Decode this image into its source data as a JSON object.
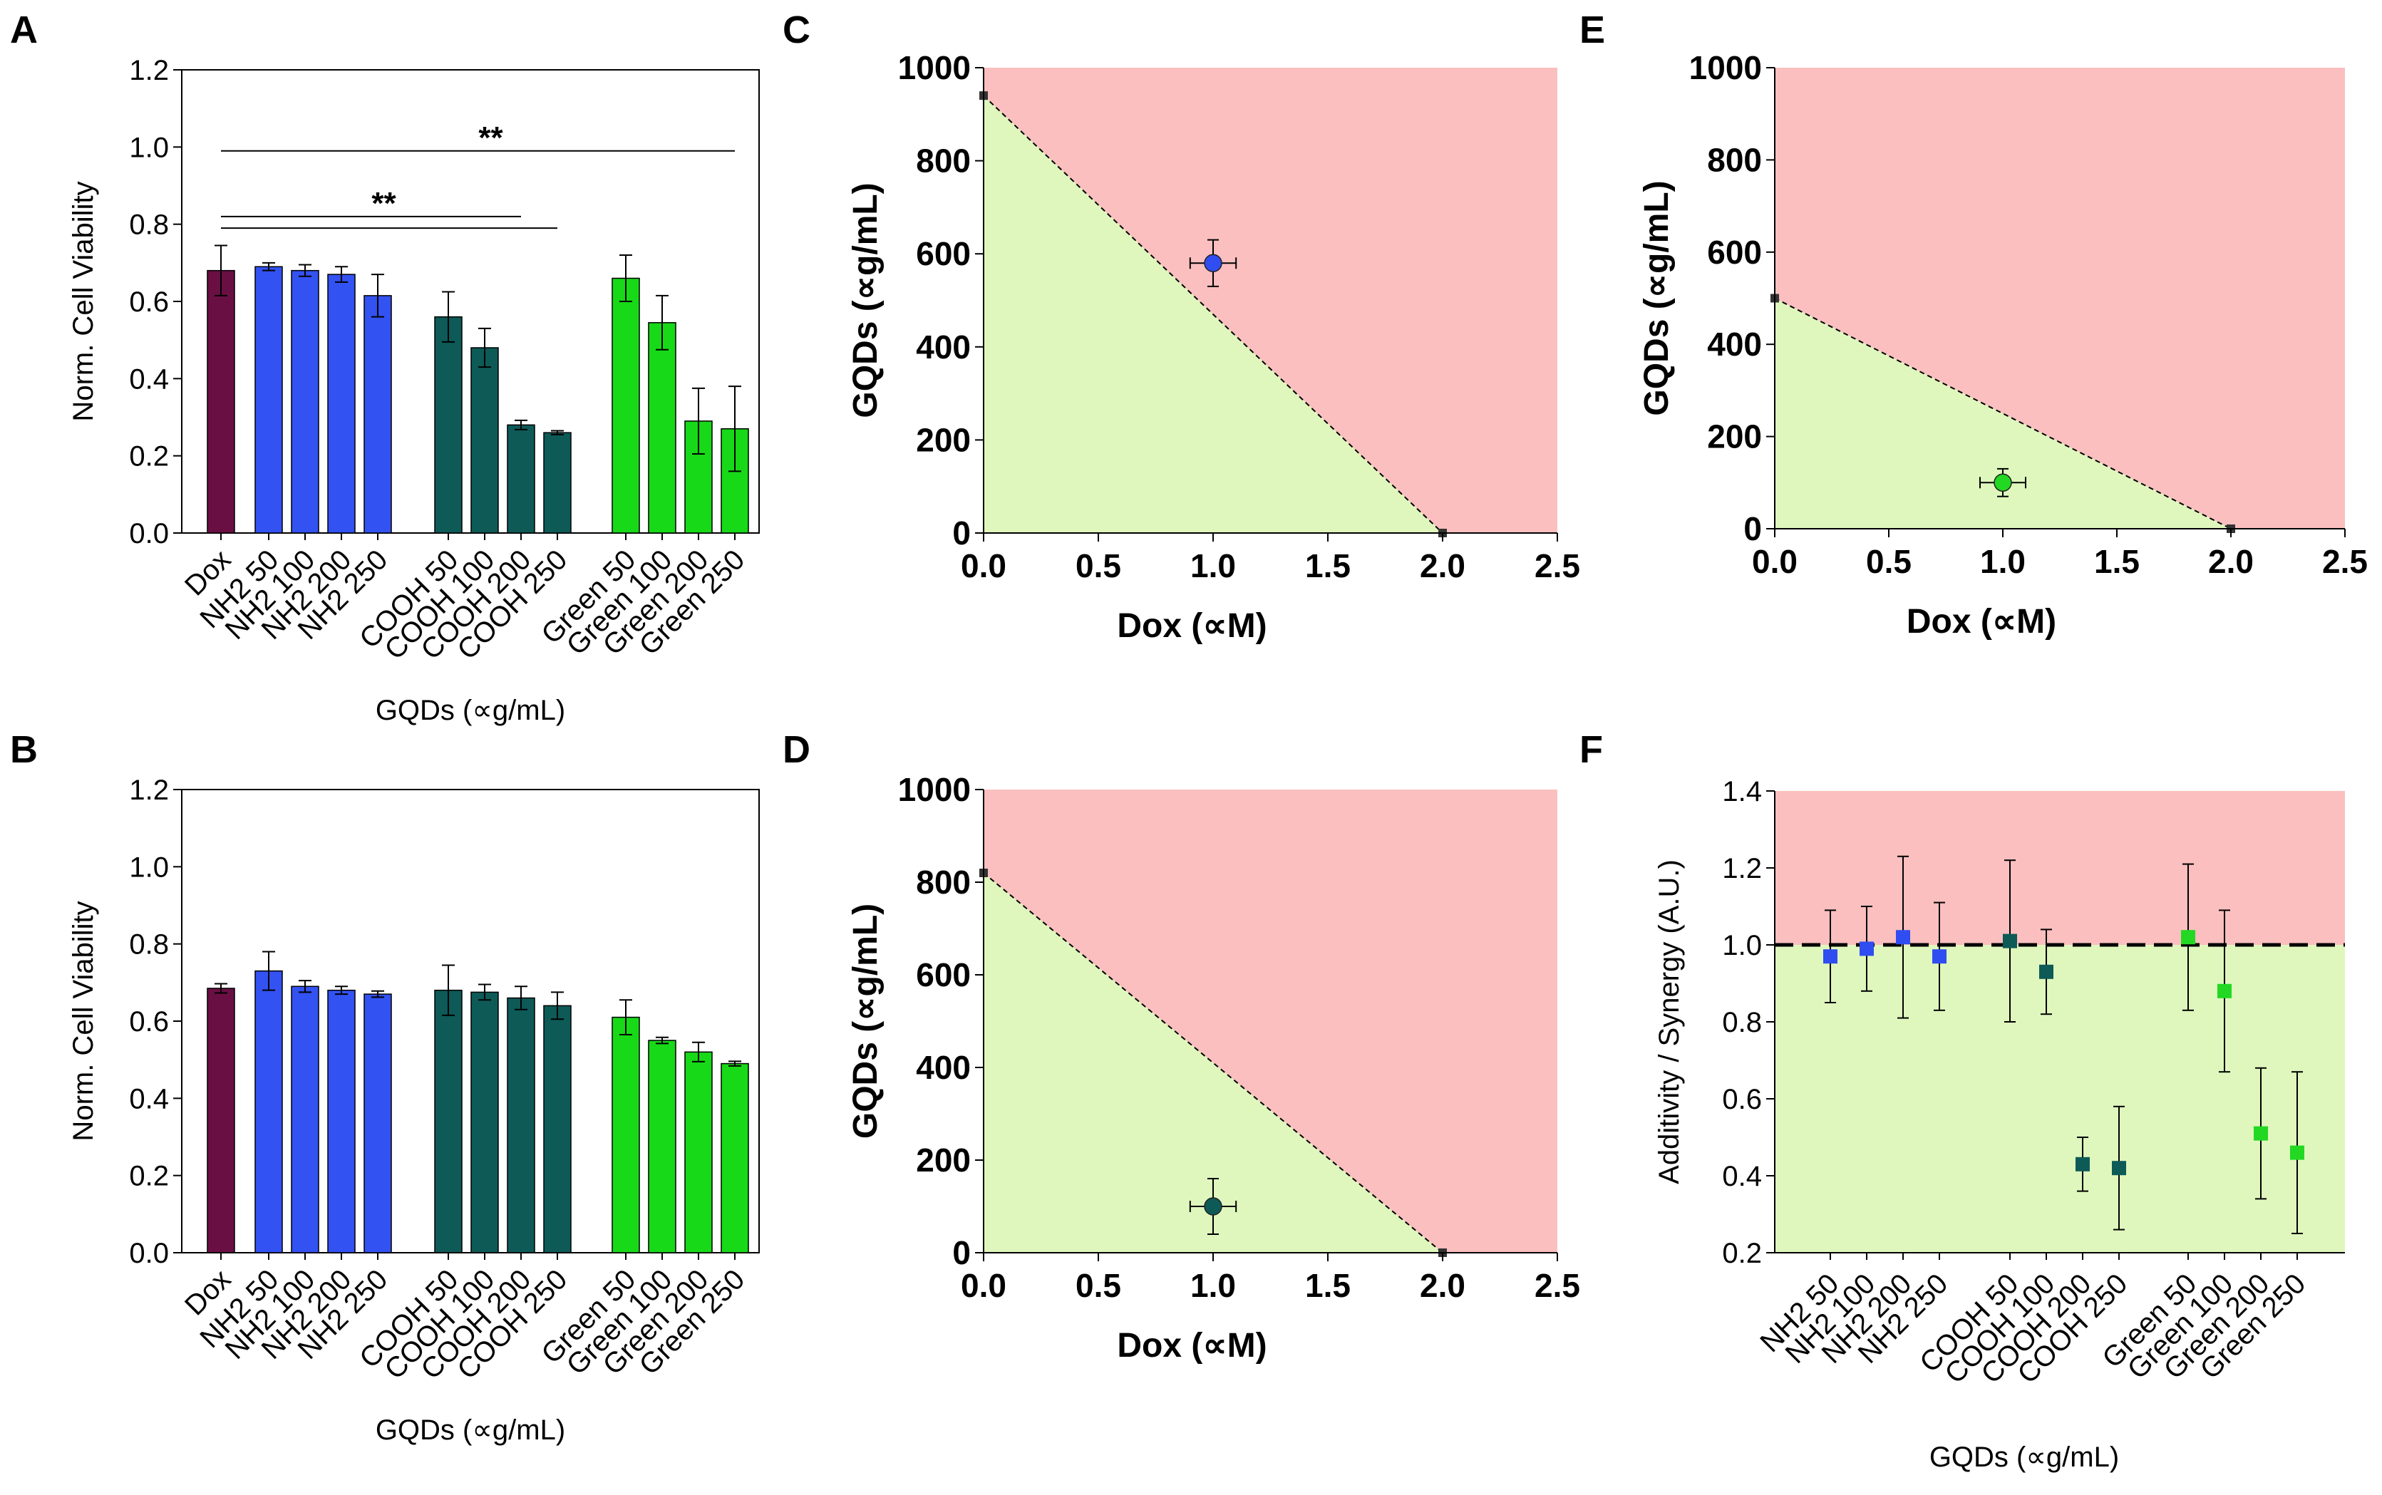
{
  "chart_data": [
    {
      "panel": "A",
      "type": "bar",
      "ylabel": "Norm. Cell Viability",
      "xlabel": "GQDs (∝g/mL)",
      "ylim": [
        0,
        1.2
      ],
      "yticks": [
        "0.0",
        "0.2",
        "0.4",
        "0.6",
        "0.8",
        "1.0",
        "1.2"
      ],
      "categories": [
        "Dox",
        "NH2 50",
        "NH2 100",
        "NH2 200",
        "NH2 250",
        "COOH 50",
        "COOH 100",
        "COOH 200",
        "COOH 250",
        "Green 50",
        "Green 100",
        "Green 200",
        "Green 250"
      ],
      "values": [
        0.68,
        0.69,
        0.68,
        0.67,
        0.615,
        0.56,
        0.48,
        0.28,
        0.26,
        0.66,
        0.545,
        0.29,
        0.27
      ],
      "errors": [
        0.065,
        0.01,
        0.015,
        0.02,
        0.055,
        0.065,
        0.05,
        0.012,
        0.005,
        0.06,
        0.07,
        0.085,
        0.11
      ],
      "colors": [
        "#6a0f44",
        "#3352f2",
        "#3352f2",
        "#3352f2",
        "#3352f2",
        "#0d5a57",
        "#0d5a57",
        "#0d5a57",
        "#0d5a57",
        "#18d918",
        "#18d918",
        "#18d918",
        "#18d918"
      ],
      "significance": [
        {
          "label": "**",
          "from": 0,
          "to": 12,
          "y": 0.99
        },
        {
          "label": "**",
          "from": 0,
          "to": 7,
          "y": 0.82
        },
        {
          "label": "",
          "from": 0,
          "to": 8,
          "y": 0.79
        }
      ]
    },
    {
      "panel": "B",
      "type": "bar",
      "ylabel": "Norm. Cell Viability",
      "xlabel": "GQDs (∝g/mL)",
      "ylim": [
        0,
        1.2
      ],
      "yticks": [
        "0.0",
        "0.2",
        "0.4",
        "0.6",
        "0.8",
        "1.0",
        "1.2"
      ],
      "categories": [
        "Dox",
        "NH2 50",
        "NH2 100",
        "NH2 200",
        "NH2 250",
        "COOH 50",
        "COOH 100",
        "COOH 200",
        "COOH 250",
        "Green 50",
        "Green 100",
        "Green 200",
        "Green 250"
      ],
      "values": [
        0.685,
        0.73,
        0.69,
        0.68,
        0.67,
        0.68,
        0.675,
        0.66,
        0.64,
        0.61,
        0.55,
        0.52,
        0.49
      ],
      "errors": [
        0.012,
        0.05,
        0.015,
        0.01,
        0.008,
        0.065,
        0.02,
        0.03,
        0.035,
        0.045,
        0.008,
        0.025,
        0.006
      ],
      "colors": [
        "#6a0f44",
        "#3352f2",
        "#3352f2",
        "#3352f2",
        "#3352f2",
        "#0d5a57",
        "#0d5a57",
        "#0d5a57",
        "#0d5a57",
        "#18d918",
        "#18d918",
        "#18d918",
        "#18d918"
      ],
      "significance": []
    },
    {
      "panel": "C",
      "type": "isobologram",
      "xlabel": "Dox (∝M)",
      "ylabel": "GQDs (∝g/mL)",
      "xlim": [
        0,
        2.5
      ],
      "ylim": [
        0,
        1000
      ],
      "xticks": [
        "0.0",
        "0.5",
        "1.0",
        "1.5",
        "2.0",
        "2.5"
      ],
      "yticks": [
        "0",
        "200",
        "400",
        "600",
        "800",
        "1000"
      ],
      "additivity_line": [
        [
          0,
          940
        ],
        [
          2.0,
          0
        ]
      ],
      "point": {
        "x": 1.0,
        "y": 580,
        "xerr": 0.1,
        "yerr": 50,
        "color": "#2f4df0"
      },
      "synergy_color": "#dff7bd",
      "antagonism_color": "#fbbfbf"
    },
    {
      "panel": "D",
      "type": "isobologram",
      "xlabel": "Dox (∝M)",
      "ylabel": "GQDs (∝g/mL)",
      "xlim": [
        0,
        2.5
      ],
      "ylim": [
        0,
        1000
      ],
      "xticks": [
        "0.0",
        "0.5",
        "1.0",
        "1.5",
        "2.0",
        "2.5"
      ],
      "yticks": [
        "0",
        "200",
        "400",
        "600",
        "800",
        "1000"
      ],
      "additivity_line": [
        [
          0,
          820
        ],
        [
          2.0,
          0
        ]
      ],
      "point": {
        "x": 1.0,
        "y": 100,
        "xerr": 0.1,
        "yerr": 60,
        "color": "#0d5a57"
      },
      "synergy_color": "#dff7bd",
      "antagonism_color": "#fbbfbf"
    },
    {
      "panel": "E",
      "type": "isobologram",
      "xlabel": "Dox (∝M)",
      "ylabel": "GQDs (∝g/mL)",
      "xlim": [
        0,
        2.5
      ],
      "ylim": [
        0,
        1000
      ],
      "xticks": [
        "0.0",
        "0.5",
        "1.0",
        "1.5",
        "2.0",
        "2.5"
      ],
      "yticks": [
        "0",
        "200",
        "400",
        "600",
        "800",
        "1000"
      ],
      "additivity_line": [
        [
          0,
          500
        ],
        [
          2.0,
          0
        ]
      ],
      "point": {
        "x": 1.0,
        "y": 100,
        "xerr": 0.1,
        "yerr": 30,
        "color": "#22d822"
      },
      "synergy_color": "#dff7bd",
      "antagonism_color": "#fbbfbf"
    },
    {
      "panel": "F",
      "type": "scatter",
      "ylabel": "Additivity / Synergy (A.U.)",
      "xlabel": "GQDs (∝g/mL)",
      "ylim": [
        0.2,
        1.4
      ],
      "yticks": [
        "0.2",
        "0.4",
        "0.6",
        "0.8",
        "1.0",
        "1.2",
        "1.4"
      ],
      "threshold": 1.0,
      "categories": [
        "NH2 50",
        "NH2 100",
        "NH2 200",
        "NH2 250",
        "COOH 50",
        "COOH 100",
        "COOH 200",
        "COOH 250",
        "Green 50",
        "Green 100",
        "Green 200",
        "Green 250"
      ],
      "values": [
        0.97,
        0.99,
        1.02,
        0.97,
        1.01,
        0.93,
        0.43,
        0.42,
        1.02,
        0.88,
        0.51,
        0.46
      ],
      "errors": [
        0.12,
        0.11,
        0.21,
        0.14,
        0.21,
        0.11,
        0.07,
        0.16,
        0.19,
        0.21,
        0.17,
        0.21
      ],
      "colors": [
        "#2f4df0",
        "#2f4df0",
        "#2f4df0",
        "#2f4df0",
        "#0d5a57",
        "#0d5a57",
        "#0d5a57",
        "#0d5a57",
        "#22d822",
        "#22d822",
        "#22d822",
        "#22d822"
      ],
      "synergy_color": "#dff7bd",
      "antagonism_color": "#fbbfbf"
    }
  ]
}
